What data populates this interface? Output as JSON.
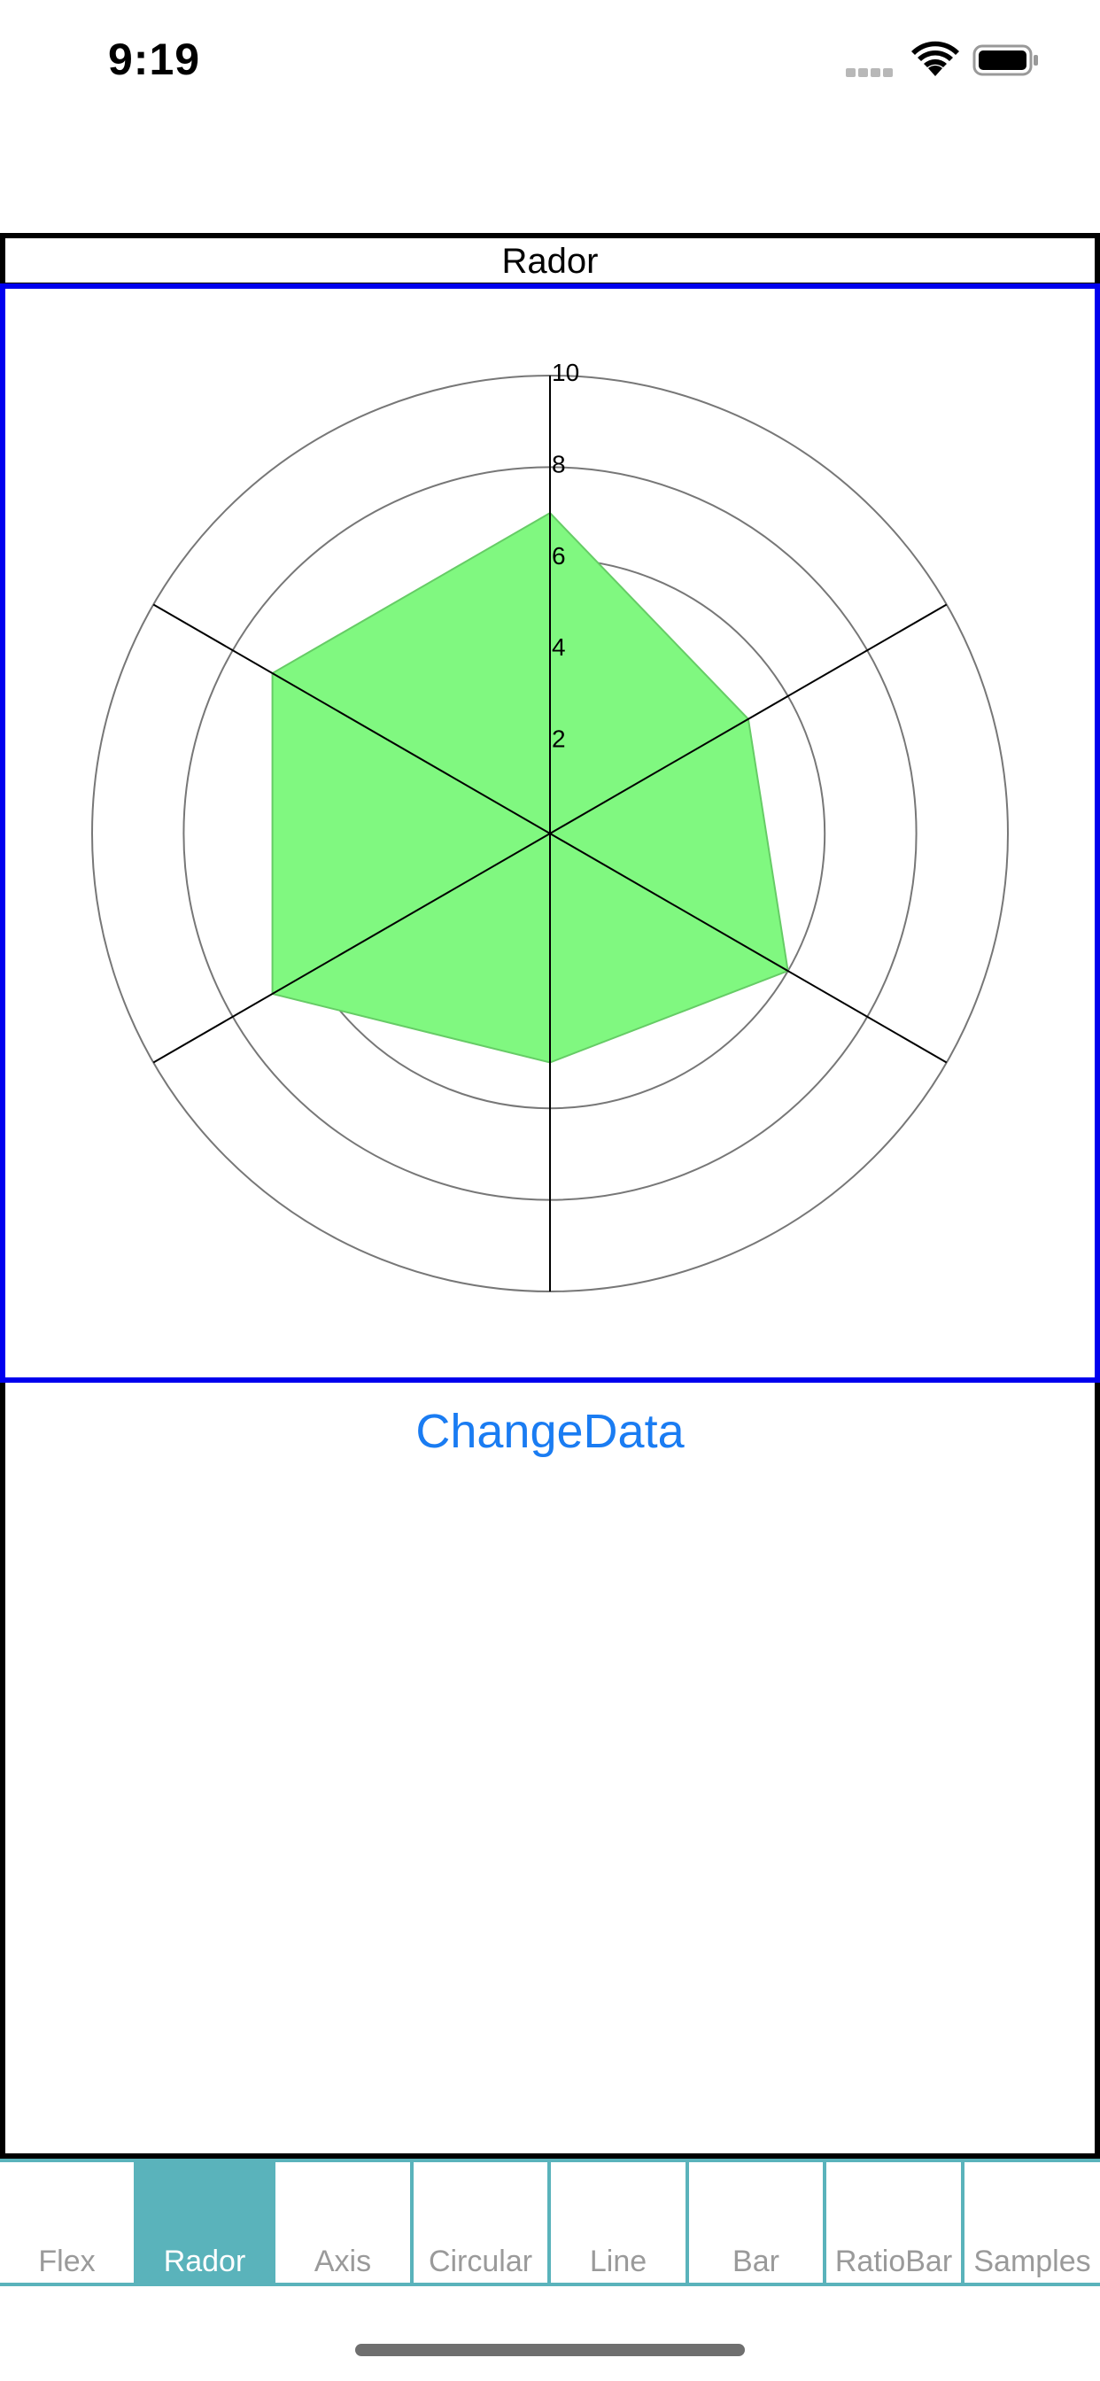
{
  "status_bar": {
    "time": "9:19"
  },
  "chart": {
    "title": "Rador"
  },
  "chart_data": {
    "type": "radar",
    "axis_count": 6,
    "max": 10,
    "rings": [
      2,
      4,
      6,
      8,
      10
    ],
    "tick_labels": [
      "2",
      "4",
      "6",
      "8",
      "10"
    ],
    "values": [
      7,
      5,
      6,
      5,
      7,
      7
    ],
    "fill_color": "#80f880",
    "ring_color": "#777777",
    "axis_color": "#000000"
  },
  "actions": {
    "change_data_label": "ChangeData"
  },
  "tabs": [
    {
      "label": "Flex",
      "active": false
    },
    {
      "label": "Rador",
      "active": true
    },
    {
      "label": "Axis",
      "active": false
    },
    {
      "label": "Circular",
      "active": false
    },
    {
      "label": "Line",
      "active": false
    },
    {
      "label": "Bar",
      "active": false
    },
    {
      "label": "RatioBar",
      "active": false
    },
    {
      "label": "Samples",
      "active": false
    }
  ],
  "colors": {
    "accent": "#5ab3bb",
    "link": "#1a7cf2",
    "chart_frame": "#0000ee"
  }
}
